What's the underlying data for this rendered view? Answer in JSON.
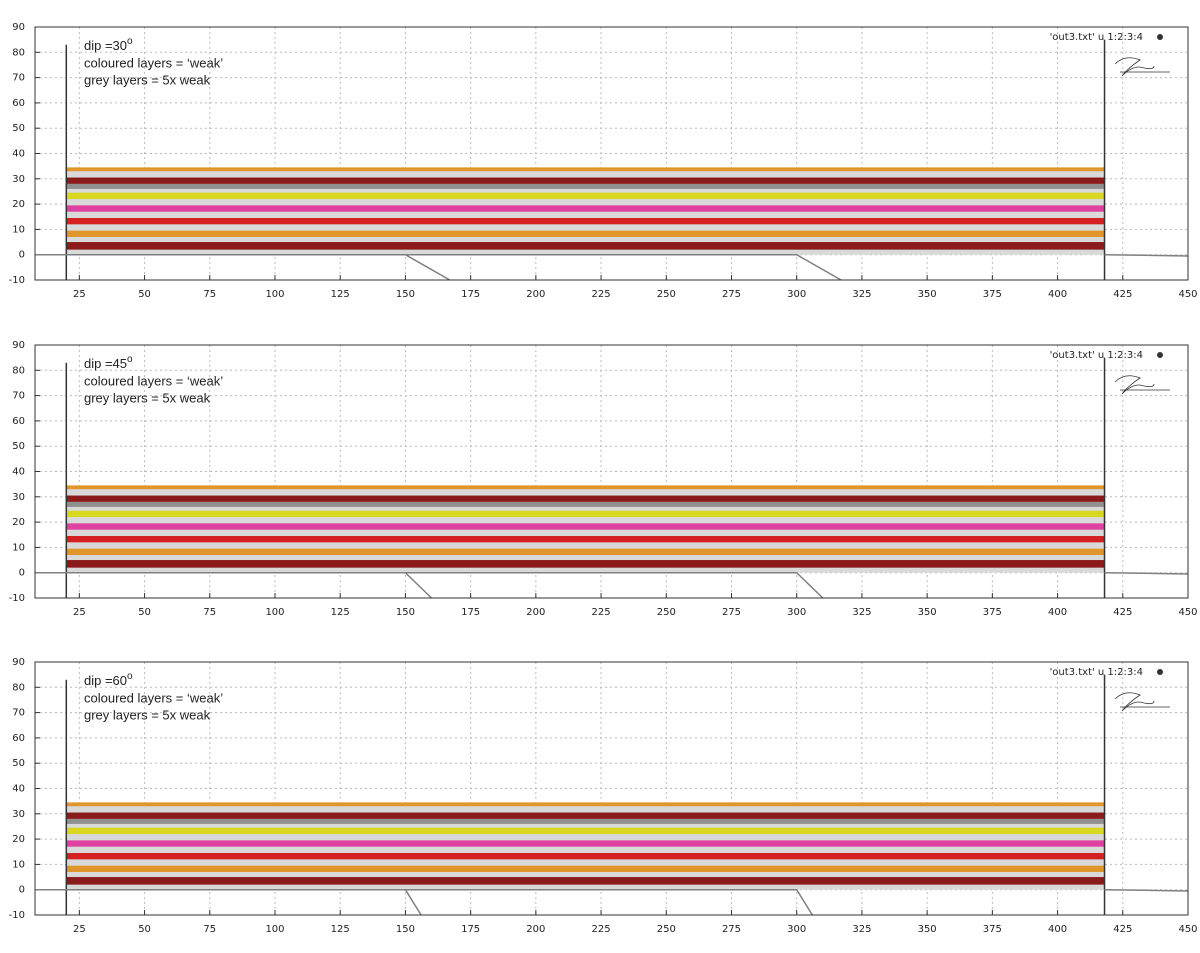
{
  "chart_data": [
    {
      "type": "area",
      "dip": {
        "text": "dip =30",
        "sup": "o"
      },
      "notes": [
        "coloured layers = ‘weak’",
        "grey layers = 5x weak"
      ],
      "legend": "'out3.txt' u 1:2:3:4",
      "legend_color": "#333333",
      "xlim": [
        8,
        450
      ],
      "ylim": [
        -10,
        90
      ],
      "xticks": [
        25,
        50,
        75,
        100,
        125,
        150,
        175,
        200,
        225,
        250,
        275,
        300,
        325,
        350,
        375,
        400,
        425,
        450
      ],
      "yticks": [
        -10,
        0,
        10,
        20,
        30,
        40,
        50,
        60,
        70,
        80,
        90
      ],
      "grid": true,
      "layer_x": [
        20,
        418
      ],
      "series": [
        {
          "color": "#d9d9d9",
          "values": [
            0,
            34.5
          ]
        },
        {
          "color": "#8b1a1a",
          "values": [
            2,
            5
          ]
        },
        {
          "color": "#e0962a",
          "values": [
            7,
            9.5
          ]
        },
        {
          "color": "#d42020",
          "values": [
            12,
            14.5
          ]
        },
        {
          "color": "#e040a0",
          "values": [
            17,
            19.5
          ]
        },
        {
          "color": "#d8d820",
          "values": [
            22,
            24.5
          ]
        },
        {
          "color": "#909090",
          "values": [
            26,
            28
          ]
        },
        {
          "color": "#8b1a1a",
          "values": [
            28,
            30.5
          ]
        },
        {
          "color": "#e0962a",
          "values": [
            33,
            34.5
          ]
        }
      ],
      "lines": [
        {
          "color": "#333333",
          "x": [
            20,
            20
          ],
          "y": [
            -10,
            83
          ]
        },
        {
          "color": "#333333",
          "x": [
            418,
            418
          ],
          "y": [
            -10,
            85
          ]
        },
        {
          "color": "#808080",
          "x": [
            8,
            150,
            167
          ],
          "y": [
            0,
            0,
            -10
          ]
        },
        {
          "color": "#808080",
          "x": [
            150,
            300,
            317
          ],
          "y": [
            0,
            0,
            -10
          ]
        },
        {
          "color": "#808080",
          "x": [
            418,
            450
          ],
          "y": [
            0,
            -0.5
          ]
        }
      ]
    },
    {
      "type": "area",
      "dip": {
        "text": "dip =45",
        "sup": "o"
      },
      "notes": [
        "coloured layers = ‘weak’",
        "grey layers = 5x weak"
      ],
      "legend": "'out3.txt' u 1:2:3:4",
      "legend_color": "#333333",
      "xlim": [
        8,
        450
      ],
      "ylim": [
        -10,
        90
      ],
      "xticks": [
        25,
        50,
        75,
        100,
        125,
        150,
        175,
        200,
        225,
        250,
        275,
        300,
        325,
        350,
        375,
        400,
        425,
        450
      ],
      "yticks": [
        -10,
        0,
        10,
        20,
        30,
        40,
        50,
        60,
        70,
        80,
        90
      ],
      "grid": true,
      "layer_x": [
        20,
        418
      ],
      "series": [
        {
          "color": "#d9d9d9",
          "values": [
            0,
            34.5
          ]
        },
        {
          "color": "#8b1a1a",
          "values": [
            2,
            5
          ]
        },
        {
          "color": "#e0962a",
          "values": [
            7,
            9.5
          ]
        },
        {
          "color": "#d42020",
          "values": [
            12,
            14.5
          ]
        },
        {
          "color": "#e040a0",
          "values": [
            17,
            19.5
          ]
        },
        {
          "color": "#d8d820",
          "values": [
            22,
            24.5
          ]
        },
        {
          "color": "#909090",
          "values": [
            26,
            28
          ]
        },
        {
          "color": "#8b1a1a",
          "values": [
            28,
            30.5
          ]
        },
        {
          "color": "#e0962a",
          "values": [
            33,
            34.5
          ]
        }
      ],
      "lines": [
        {
          "color": "#333333",
          "x": [
            20,
            20
          ],
          "y": [
            -10,
            83
          ]
        },
        {
          "color": "#333333",
          "x": [
            418,
            418
          ],
          "y": [
            -10,
            85
          ]
        },
        {
          "color": "#808080",
          "x": [
            8,
            150,
            160
          ],
          "y": [
            0,
            0,
            -10
          ]
        },
        {
          "color": "#808080",
          "x": [
            150,
            300,
            310
          ],
          "y": [
            0,
            0,
            -10
          ]
        },
        {
          "color": "#808080",
          "x": [
            418,
            450
          ],
          "y": [
            0,
            -0.5
          ]
        }
      ]
    },
    {
      "type": "area",
      "dip": {
        "text": "dip =60",
        "sup": "o"
      },
      "notes": [
        "coloured layers = ‘weak’",
        "grey layers = 5x weak"
      ],
      "legend": "'out3.txt' u 1:2:3:4",
      "legend_color": "#333333",
      "xlim": [
        8,
        450
      ],
      "ylim": [
        -10,
        90
      ],
      "xticks": [
        25,
        50,
        75,
        100,
        125,
        150,
        175,
        200,
        225,
        250,
        275,
        300,
        325,
        350,
        375,
        400,
        425,
        450
      ],
      "yticks": [
        -10,
        0,
        10,
        20,
        30,
        40,
        50,
        60,
        70,
        80,
        90
      ],
      "grid": true,
      "layer_x": [
        20,
        418
      ],
      "series": [
        {
          "color": "#d9d9d9",
          "values": [
            0,
            34.5
          ]
        },
        {
          "color": "#8b1a1a",
          "values": [
            2,
            5
          ]
        },
        {
          "color": "#e0962a",
          "values": [
            7,
            9.5
          ]
        },
        {
          "color": "#d42020",
          "values": [
            12,
            14.5
          ]
        },
        {
          "color": "#e040a0",
          "values": [
            17,
            19.5
          ]
        },
        {
          "color": "#d8d820",
          "values": [
            22,
            24.5
          ]
        },
        {
          "color": "#909090",
          "values": [
            26,
            28
          ]
        },
        {
          "color": "#8b1a1a",
          "values": [
            28,
            30.5
          ]
        },
        {
          "color": "#e0962a",
          "values": [
            33,
            34.5
          ]
        }
      ],
      "lines": [
        {
          "color": "#333333",
          "x": [
            20,
            20
          ],
          "y": [
            -10,
            83
          ]
        },
        {
          "color": "#333333",
          "x": [
            418,
            418
          ],
          "y": [
            -10,
            85
          ]
        },
        {
          "color": "#808080",
          "x": [
            8,
            150,
            156
          ],
          "y": [
            0,
            0,
            -10
          ]
        },
        {
          "color": "#808080",
          "x": [
            150,
            300,
            306
          ],
          "y": [
            0,
            0,
            -10
          ]
        },
        {
          "color": "#808080",
          "x": [
            418,
            450
          ],
          "y": [
            0,
            -0.5
          ]
        }
      ]
    }
  ]
}
